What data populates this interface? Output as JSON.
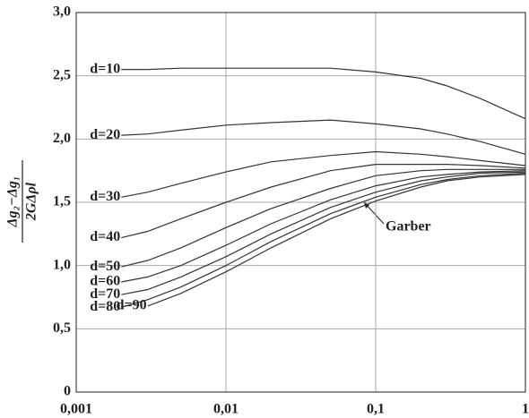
{
  "chart_data": {
    "type": "line",
    "xscale": "log",
    "grid": true,
    "y_label": {
      "numerator": "Δg₂−Δg₁",
      "denominator": "2GΔρl"
    },
    "x": [
      0.002,
      0.003,
      0.005,
      0.01,
      0.02,
      0.05,
      0.1,
      0.2,
      0.3,
      0.5,
      1
    ],
    "series": [
      {
        "name": "d=10",
        "color": "#333333",
        "values": [
          2.55,
          2.55,
          2.56,
          2.56,
          2.56,
          2.56,
          2.53,
          2.48,
          2.42,
          2.32,
          2.16
        ]
      },
      {
        "name": "d=20",
        "color": "#333333",
        "values": [
          2.03,
          2.04,
          2.07,
          2.11,
          2.13,
          2.15,
          2.12,
          2.08,
          2.04,
          1.98,
          1.88
        ]
      },
      {
        "name": "d=30",
        "color": "#333333",
        "values": [
          1.54,
          1.58,
          1.65,
          1.74,
          1.82,
          1.87,
          1.9,
          1.88,
          1.86,
          1.83,
          1.79
        ]
      },
      {
        "name": "d=40",
        "color": "#333333",
        "values": [
          1.22,
          1.27,
          1.37,
          1.5,
          1.62,
          1.75,
          1.8,
          1.8,
          1.8,
          1.79,
          1.77
        ]
      },
      {
        "name": "d=50",
        "color": "#333333",
        "values": [
          0.99,
          1.04,
          1.14,
          1.3,
          1.45,
          1.61,
          1.71,
          1.75,
          1.76,
          1.76,
          1.76
        ]
      },
      {
        "name": "d=60",
        "color": "#333333",
        "values": [
          0.87,
          0.91,
          1.0,
          1.16,
          1.33,
          1.52,
          1.63,
          1.7,
          1.72,
          1.74,
          1.75
        ]
      },
      {
        "name": "d=70",
        "color": "#333333",
        "values": [
          0.77,
          0.81,
          0.91,
          1.07,
          1.25,
          1.46,
          1.58,
          1.67,
          1.7,
          1.73,
          1.74
        ]
      },
      {
        "name": "d=80",
        "color": "#333333",
        "values": [
          0.67,
          0.73,
          0.83,
          1.0,
          1.19,
          1.41,
          1.54,
          1.64,
          1.68,
          1.71,
          1.73
        ]
      },
      {
        "name": "d=90",
        "color": "#333333",
        "values": [
          null,
          0.68,
          0.78,
          0.95,
          1.14,
          1.37,
          1.51,
          1.62,
          1.67,
          1.7,
          1.72
        ]
      }
    ],
    "annotation": "Garber",
    "xlim": [
      0.001,
      1
    ],
    "xticks": [
      {
        "value": 0.001,
        "label": "0,001"
      },
      {
        "value": 0.01,
        "label": "0,01"
      },
      {
        "value": 0.1,
        "label": "0,1"
      },
      1
    ],
    "ylim": [
      0,
      3
    ],
    "yticks": [
      0,
      {
        "value": 0.5,
        "label": "0,5"
      },
      {
        "value": 1,
        "label": "1,0"
      },
      {
        "value": 1.5,
        "label": "1,5"
      },
      {
        "value": 2,
        "label": "2,0"
      },
      {
        "value": 2.5,
        "label": "2,5"
      },
      {
        "value": 3,
        "label": "3,0"
      }
    ]
  }
}
